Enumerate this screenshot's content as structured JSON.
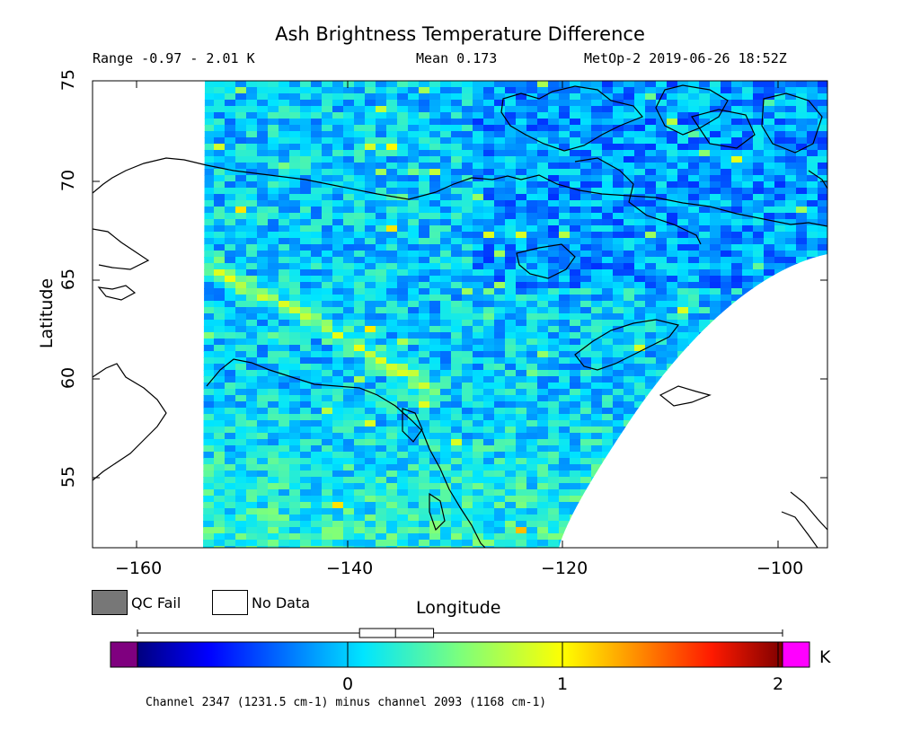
{
  "header": {
    "title": "Ash Brightness Temperature Difference",
    "range": "Range -0.97 - 2.01 K",
    "mean": "Mean 0.173",
    "satellite_time": "MetOp-2 2019-06-26 18:52Z"
  },
  "map": {
    "xlabel": "Longitude",
    "ylabel": "Latitude",
    "x_ticks": [
      "−160",
      "−140",
      "−120",
      "−100"
    ],
    "y_ticks": [
      "75",
      "70",
      "65",
      "60",
      "55"
    ],
    "lon_range": [
      -164,
      -96
    ],
    "lat_range": [
      51.5,
      75
    ]
  },
  "legend": {
    "qc_fail": "QC Fail",
    "no_data": "No Data",
    "qc_fail_color": "#777777",
    "no_data_color": "#ffffff"
  },
  "colorbar": {
    "unit": "K",
    "ticks": [
      "0",
      "1",
      "2"
    ],
    "under_color": "#7f007f",
    "over_color": "#ff00ff",
    "value_range": [
      -1.05,
      2.0
    ],
    "box_whisker": {
      "min": -0.97,
      "q1": 0.0,
      "median": 0.17,
      "q3": 0.35,
      "max": 2.01
    },
    "footnote": "Channel 2347 (1231.5 cm-1) minus channel 2093 (1168 cm-1)"
  }
}
